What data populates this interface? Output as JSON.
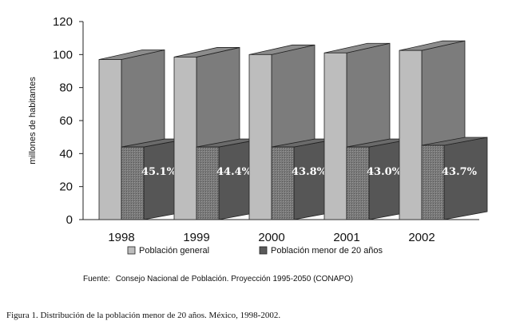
{
  "chart_data": {
    "type": "bar",
    "title": "",
    "xlabel": "",
    "ylabel": "millones de habitantes",
    "ylim": [
      0,
      120
    ],
    "yticks": [
      0,
      20,
      40,
      60,
      80,
      100,
      120
    ],
    "grid": false,
    "legend_position": "bottom",
    "categories": [
      "1998",
      "1999",
      "2000",
      "2001",
      "2002"
    ],
    "series": [
      {
        "name": "Población general",
        "values": [
          97,
          98.5,
          100,
          101,
          102.5
        ],
        "color": "#bdbdbd"
      },
      {
        "name": "Población menor de 20 años",
        "values": [
          44,
          44,
          44,
          44,
          45
        ],
        "color": "#5a5a5a"
      }
    ],
    "annotations": [
      "45.1%",
      "44.4%",
      "43.8%",
      "43.0%",
      "43.7%"
    ]
  },
  "source": {
    "label": "Fuente:",
    "text": "Consejo Nacional de Población. Proyección 1995-2050 (CONAPO)"
  },
  "caption": "Figura 1. Distribución de la población menor de 20 años. México, 1998-2002."
}
